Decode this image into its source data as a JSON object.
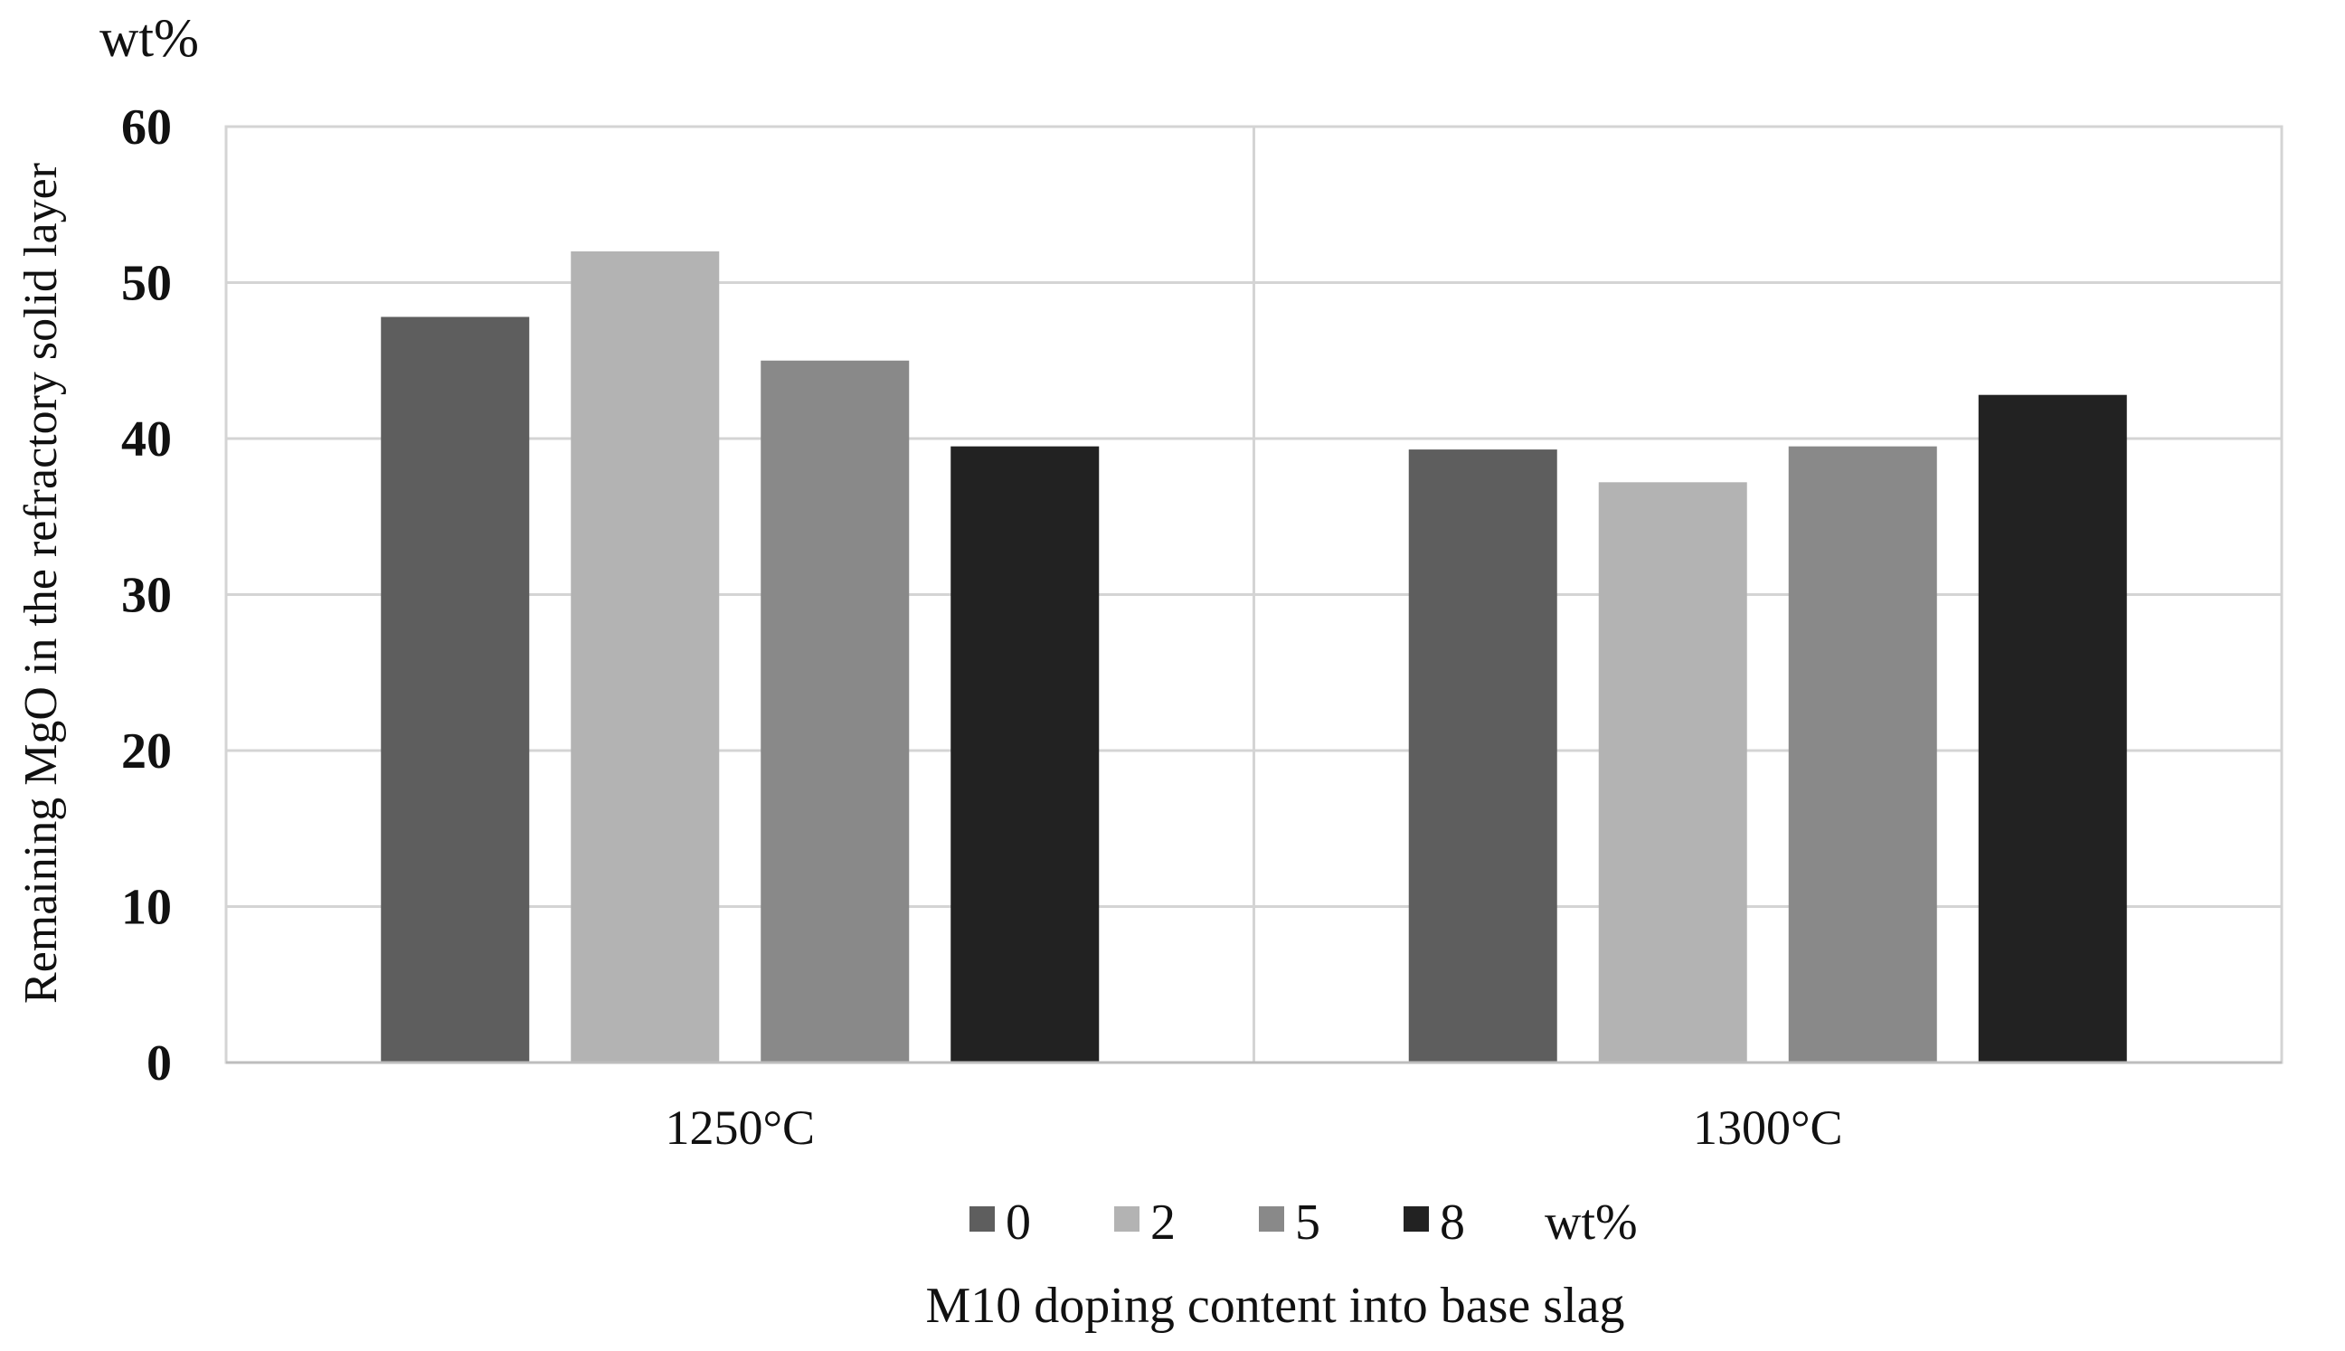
{
  "chart_data": {
    "type": "bar",
    "title": "",
    "ylabel": "Remaining MgO in the refractory solid layer",
    "yunit": "wt%",
    "xlabel": "M10 doping content into base slag",
    "categories": [
      "1250°C",
      "1300°C"
    ],
    "ylim": [
      0,
      60
    ],
    "yticks": [
      0,
      10,
      20,
      30,
      40,
      50,
      60
    ],
    "grid": true,
    "legend_position": "bottom",
    "legend_suffix": "wt%",
    "series": [
      {
        "name": "0",
        "color": "#5e5e5e",
        "values": [
          47.8,
          39.3
        ]
      },
      {
        "name": "2",
        "color": "#b3b3b3",
        "values": [
          52.0,
          37.2
        ]
      },
      {
        "name": "5",
        "color": "#898989",
        "values": [
          45.0,
          39.5
        ]
      },
      {
        "name": "8",
        "color": "#222222",
        "values": [
          39.5,
          42.8
        ]
      }
    ]
  }
}
